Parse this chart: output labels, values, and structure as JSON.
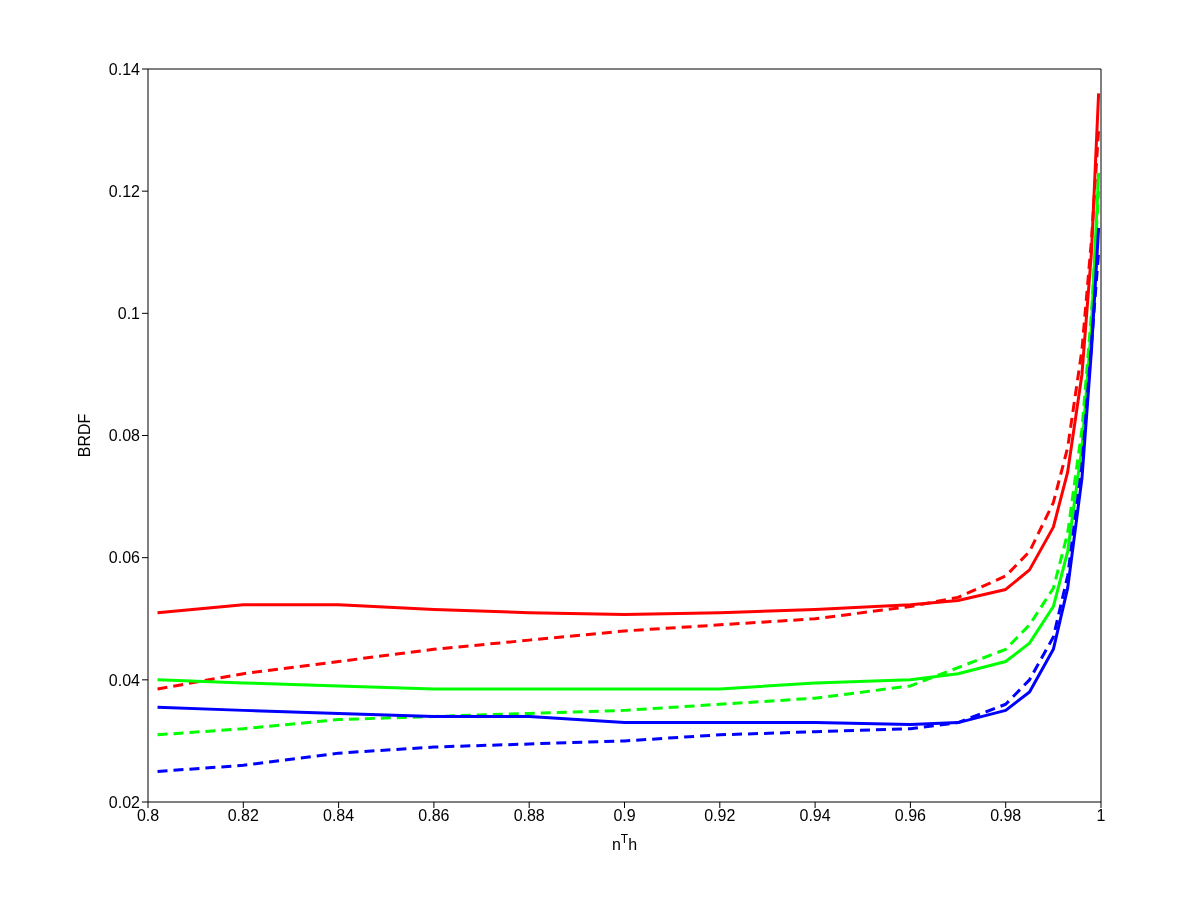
{
  "chart_data": {
    "type": "line",
    "xlabel": "n$^{T}$h",
    "ylabel": "BRDF",
    "x": [
      0.802,
      0.82,
      0.84,
      0.86,
      0.88,
      0.9,
      0.92,
      0.94,
      0.96,
      0.97,
      0.98,
      0.985,
      0.99,
      0.993,
      0.996,
      0.998,
      0.9995
    ],
    "series": [
      {
        "color": "#ff0000",
        "line_style": "solid",
        "values": [
          0.051,
          0.0523,
          0.0523,
          0.0515,
          0.051,
          0.0507,
          0.051,
          0.0515,
          0.0523,
          0.053,
          0.0548,
          0.058,
          0.065,
          0.074,
          0.09,
          0.11,
          0.136
        ]
      },
      {
        "color": "#ff0000",
        "line_style": "dashed",
        "values": [
          0.0385,
          0.041,
          0.043,
          0.045,
          0.0465,
          0.048,
          0.049,
          0.05,
          0.052,
          0.0535,
          0.057,
          0.061,
          0.069,
          0.078,
          0.094,
          0.112,
          0.13
        ]
      },
      {
        "color": "#00ff00",
        "line_style": "solid",
        "values": [
          0.04,
          0.0395,
          0.039,
          0.0385,
          0.0385,
          0.0385,
          0.0385,
          0.0395,
          0.04,
          0.041,
          0.043,
          0.046,
          0.052,
          0.061,
          0.078,
          0.098,
          0.123
        ]
      },
      {
        "color": "#00ff00",
        "line_style": "dashed",
        "values": [
          0.031,
          0.032,
          0.0335,
          0.034,
          0.0345,
          0.035,
          0.036,
          0.037,
          0.039,
          0.042,
          0.045,
          0.049,
          0.055,
          0.064,
          0.081,
          0.1,
          0.12
        ]
      },
      {
        "color": "#0000ff",
        "line_style": "solid",
        "values": [
          0.0355,
          0.035,
          0.0345,
          0.034,
          0.034,
          0.033,
          0.033,
          0.033,
          0.0327,
          0.033,
          0.035,
          0.038,
          0.045,
          0.055,
          0.073,
          0.094,
          0.114
        ]
      },
      {
        "color": "#0000ff",
        "line_style": "dashed",
        "values": [
          0.025,
          0.026,
          0.028,
          0.029,
          0.0295,
          0.03,
          0.031,
          0.0315,
          0.032,
          0.033,
          0.036,
          0.04,
          0.047,
          0.057,
          0.075,
          0.095,
          0.11
        ]
      }
    ],
    "xlim": [
      0.8,
      1
    ],
    "xticks": [
      0.8,
      0.82,
      0.84,
      0.86,
      0.88,
      0.9,
      0.92,
      0.94,
      0.96,
      0.98,
      1
    ],
    "ylim": [
      0.02,
      0.14
    ],
    "yticks": [
      0.02,
      0.04,
      0.06,
      0.08,
      0.1,
      0.12,
      0.14
    ],
    "grid": false,
    "legend": false,
    "marker": "none"
  }
}
